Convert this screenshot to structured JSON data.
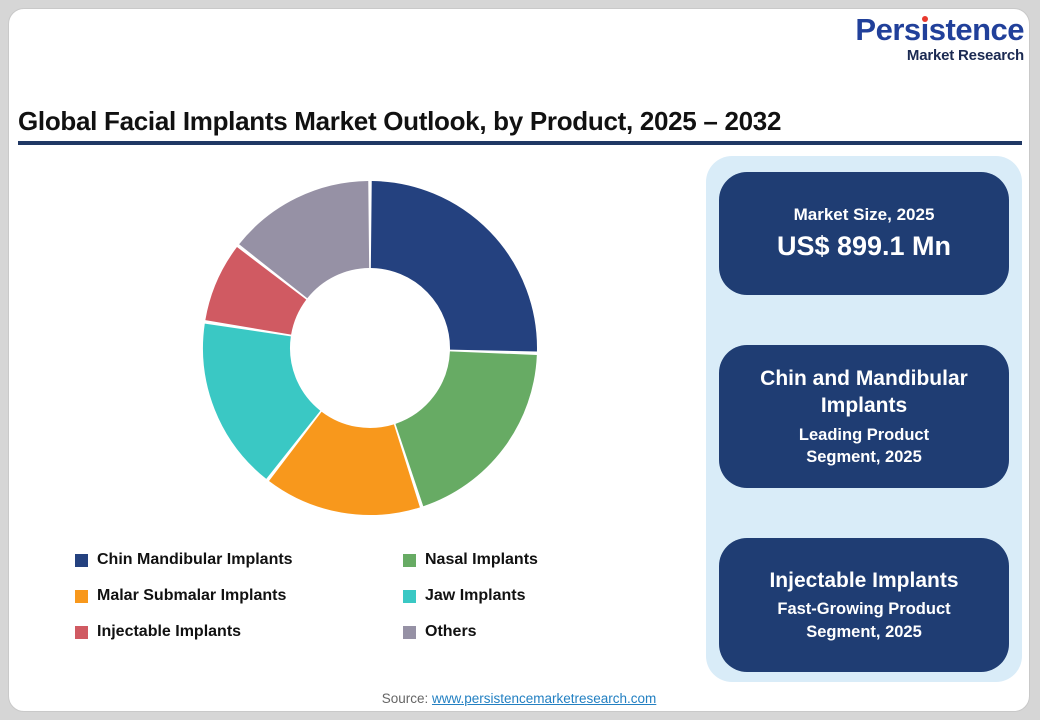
{
  "brand": {
    "word_start": "Pers",
    "dotless_i": "ı",
    "word_end": "stence",
    "subtitle": "Market Research"
  },
  "title": "Global Facial Implants Market Outlook, by Product, 2025 – 2032",
  "chart_data": {
    "type": "pie",
    "donut": true,
    "title": "Global Facial Implants Market Outlook, by Product, 2025 – 2032",
    "unit": "percent share (estimated from segment angles)",
    "start_angle_deg": 0,
    "legend_position": "bottom",
    "segments": [
      {
        "label": "Chin Mandibular Implants",
        "value": 25.5,
        "color": "#24417F"
      },
      {
        "label": "Nasal Implants",
        "value": 19.5,
        "color": "#67AB64"
      },
      {
        "label": "Malar Submalar Implants",
        "value": 15.5,
        "color": "#F8981C"
      },
      {
        "label": "Jaw Implants",
        "value": 17,
        "color": "#3AC8C4"
      },
      {
        "label": "Injectable Implants",
        "value": 8,
        "color": "#D05A62"
      },
      {
        "label": "Others",
        "value": 14.5,
        "color": "#9691A5"
      }
    ]
  },
  "panel": {
    "cards": [
      {
        "heading": "Market Size, 2025",
        "sub": "US$ 899.1 Mn"
      },
      {
        "heading": "Chin and Mandibular\nImplants",
        "sub": "Leading Product\nSegment, 2025"
      },
      {
        "heading": "Injectable Implants",
        "sub": "Fast-Growing Product\nSegment, 2025"
      }
    ]
  },
  "source": {
    "prefix": "Source: ",
    "link": "www.persistencemarketresearch.com"
  },
  "colors": {
    "page_background": "#D6D6D6",
    "card_background": "#FFFFFF",
    "title_rule_navy": "#203864",
    "panel_light_blue": "#D9ECF8",
    "stat_card_navy": "#1F3D73",
    "logo_blue": "#21409A",
    "logo_dot_red": "#E8382D",
    "link_blue": "#2380C2",
    "source_gray": "#666666"
  }
}
